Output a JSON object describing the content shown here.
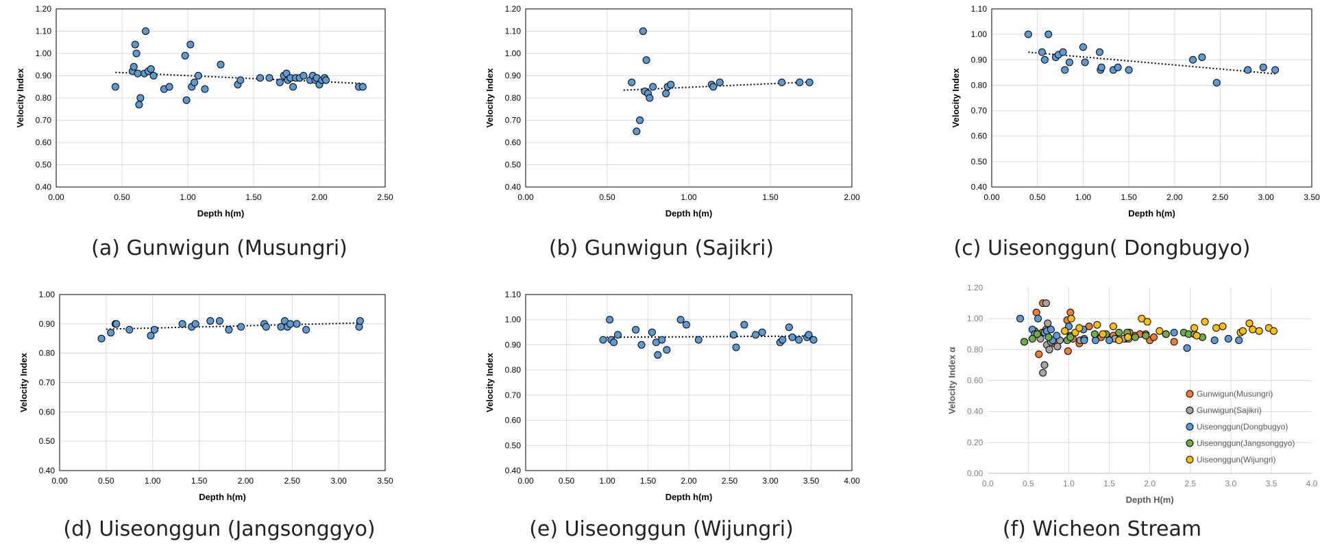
{
  "chart_data": [
    {
      "type": "scatter",
      "title": "",
      "caption": "(a) Gunwigun (Musungri)",
      "xlabel": "Depth h(m)",
      "ylabel": "Velocity Index",
      "xlim": [
        0,
        2.5
      ],
      "xstep": 0.5,
      "xdecimals": 2,
      "ylim": [
        0.4,
        1.2
      ],
      "ystep": 0.1,
      "ydecimals": 2,
      "grid": "horizontal",
      "marker_color": "#5B9BD5",
      "trendline": {
        "x": [
          0.45,
          2.33
        ],
        "y": [
          0.915,
          0.865
        ]
      },
      "series": [
        {
          "name": "Gunwigun(Musungri)",
          "x": [
            0.45,
            0.58,
            0.59,
            0.6,
            0.61,
            0.62,
            0.63,
            0.64,
            0.67,
            0.68,
            0.7,
            0.72,
            0.74,
            0.82,
            0.86,
            0.98,
            0.99,
            1.02,
            1.03,
            1.05,
            1.08,
            1.13,
            1.25,
            1.38,
            1.4,
            1.55,
            1.62,
            1.7,
            1.73,
            1.75,
            1.76,
            1.78,
            1.8,
            1.82,
            1.85,
            1.88,
            1.93,
            1.95,
            1.97,
            1.98,
            2.0,
            2.02,
            2.04,
            2.05,
            2.3,
            2.33
          ],
          "y": [
            0.85,
            0.92,
            0.94,
            1.04,
            1.0,
            0.91,
            0.77,
            0.8,
            0.91,
            1.1,
            0.92,
            0.93,
            0.9,
            0.84,
            0.85,
            0.99,
            0.79,
            1.04,
            0.85,
            0.87,
            0.9,
            0.84,
            0.95,
            0.86,
            0.88,
            0.89,
            0.89,
            0.87,
            0.9,
            0.91,
            0.88,
            0.89,
            0.85,
            0.89,
            0.89,
            0.9,
            0.88,
            0.9,
            0.88,
            0.89,
            0.86,
            0.88,
            0.89,
            0.88,
            0.85,
            0.85
          ]
        }
      ]
    },
    {
      "type": "scatter",
      "title": "",
      "caption": "(b) Gunwigun (Sajikri)",
      "xlabel": "Depth h(m)",
      "ylabel": "Velocity Index",
      "xlim": [
        0,
        2.0
      ],
      "xstep": 0.5,
      "xdecimals": 2,
      "ylim": [
        0.4,
        1.2
      ],
      "ystep": 0.1,
      "ydecimals": 2,
      "grid": "horizontal",
      "marker_color": "#5B9BD5",
      "trendline": {
        "x": [
          0.6,
          1.75
        ],
        "y": [
          0.835,
          0.872
        ]
      },
      "series": [
        {
          "name": "Gunwigun(Sajikri)",
          "x": [
            0.65,
            0.68,
            0.7,
            0.72,
            0.73,
            0.74,
            0.75,
            0.76,
            0.78,
            0.86,
            0.87,
            0.89,
            1.14,
            1.15,
            1.19,
            1.57,
            1.68,
            1.74
          ],
          "y": [
            0.87,
            0.65,
            0.7,
            1.1,
            0.83,
            0.97,
            0.82,
            0.8,
            0.85,
            0.82,
            0.85,
            0.86,
            0.86,
            0.85,
            0.87,
            0.87,
            0.87,
            0.87
          ]
        }
      ]
    },
    {
      "type": "scatter",
      "title": "",
      "caption": "(c) Uiseonggun( Dongbugyo)",
      "xlabel": "Depth h(m)",
      "ylabel": "Velocity Index",
      "xlim": [
        0,
        3.5
      ],
      "xstep": 0.5,
      "xdecimals": 2,
      "ylim": [
        0.4,
        1.1
      ],
      "ystep": 0.1,
      "ydecimals": 2,
      "grid": "horizontal",
      "marker_color": "#5B9BD5",
      "trendline": {
        "x": [
          0.4,
          3.1
        ],
        "y": [
          0.93,
          0.845
        ]
      },
      "series": [
        {
          "name": "Uiseonggun(Dongbugyo)",
          "x": [
            0.4,
            0.55,
            0.58,
            0.62,
            0.7,
            0.73,
            0.78,
            0.8,
            0.85,
            1.0,
            1.02,
            1.18,
            1.19,
            1.2,
            1.33,
            1.38,
            1.5,
            2.2,
            2.3,
            2.46,
            2.8,
            2.97,
            3.1
          ],
          "y": [
            1.0,
            0.93,
            0.9,
            1.0,
            0.91,
            0.92,
            0.93,
            0.86,
            0.89,
            0.95,
            0.89,
            0.93,
            0.86,
            0.87,
            0.86,
            0.87,
            0.86,
            0.9,
            0.91,
            0.81,
            0.86,
            0.87,
            0.86
          ]
        }
      ]
    },
    {
      "type": "scatter",
      "title": "",
      "caption": "(d) Uiseonggun (Jangsonggyo)",
      "xlabel": "Depth h(m)",
      "ylabel": "Velocity Index",
      "xlim": [
        0,
        3.5
      ],
      "xstep": 0.5,
      "xdecimals": 2,
      "ylim": [
        0.4,
        1.0
      ],
      "ystep": 0.1,
      "ydecimals": 2,
      "grid": "horizontal",
      "marker_color": "#5B9BD5",
      "trendline": {
        "x": [
          0.5,
          3.2
        ],
        "y": [
          0.882,
          0.903
        ]
      },
      "series": [
        {
          "name": "Uiseonggun(Jangsonggyo)",
          "x": [
            0.45,
            0.55,
            0.6,
            0.61,
            0.75,
            0.98,
            1.02,
            1.32,
            1.42,
            1.46,
            1.62,
            1.72,
            1.82,
            1.95,
            2.2,
            2.22,
            2.38,
            2.42,
            2.45,
            2.48,
            2.55,
            2.65,
            3.22,
            3.23
          ],
          "y": [
            0.85,
            0.87,
            0.9,
            0.9,
            0.88,
            0.86,
            0.88,
            0.9,
            0.89,
            0.9,
            0.91,
            0.91,
            0.88,
            0.89,
            0.9,
            0.89,
            0.89,
            0.91,
            0.89,
            0.9,
            0.9,
            0.88,
            0.89,
            0.91
          ]
        }
      ]
    },
    {
      "type": "scatter",
      "title": "",
      "caption": "(e) Uiseonggun (Wijungri)",
      "xlabel": "Depth h(m)",
      "ylabel": "Velocity Index",
      "xlim": [
        0,
        4.0
      ],
      "xstep": 0.5,
      "xdecimals": 2,
      "ylim": [
        0.4,
        1.1
      ],
      "ystep": 0.1,
      "ydecimals": 2,
      "grid": "horizontal",
      "marker_color": "#5B9BD5",
      "trendline": {
        "x": [
          0.95,
          3.52
        ],
        "y": [
          0.93,
          0.935
        ]
      },
      "series": [
        {
          "name": "Uiseonggun(Wijungri)",
          "x": [
            0.95,
            1.03,
            1.05,
            1.08,
            1.13,
            1.35,
            1.42,
            1.55,
            1.6,
            1.62,
            1.67,
            1.73,
            1.9,
            1.97,
            2.12,
            2.55,
            2.58,
            2.68,
            2.82,
            2.9,
            3.12,
            3.15,
            3.23,
            3.27,
            3.35,
            3.45,
            3.47,
            3.53
          ],
          "y": [
            0.92,
            1.0,
            0.92,
            0.91,
            0.94,
            0.96,
            0.9,
            0.95,
            0.91,
            0.86,
            0.92,
            0.88,
            1.0,
            0.98,
            0.92,
            0.94,
            0.89,
            0.98,
            0.94,
            0.95,
            0.91,
            0.92,
            0.97,
            0.93,
            0.92,
            0.93,
            0.94,
            0.92
          ]
        }
      ]
    },
    {
      "type": "scatter",
      "title": "",
      "caption": "(f) Wicheon Stream",
      "xlabel": "Depth H(m)",
      "ylabel": "Velocity Index α",
      "xlim": [
        0,
        4.0
      ],
      "xstep": 0.5,
      "xdecimals": 1,
      "ylim": [
        0,
        1.2
      ],
      "ystep": 0.2,
      "ydecimals": 2,
      "grid": "both",
      "legend_position": "bottom-right",
      "series": [
        {
          "name": "Gunwigun(Musungri)",
          "color": "#ED7D31",
          "x": [
            0.45,
            0.58,
            0.6,
            0.63,
            0.67,
            0.68,
            0.72,
            0.82,
            0.98,
            0.99,
            1.02,
            1.05,
            1.13,
            1.25,
            1.4,
            1.55,
            1.7,
            1.75,
            1.82,
            1.88,
            1.95,
            2.0,
            2.05,
            2.3
          ],
          "y": [
            0.85,
            0.92,
            1.04,
            0.77,
            0.91,
            1.1,
            0.93,
            0.84,
            0.99,
            0.79,
            1.04,
            0.87,
            0.84,
            0.95,
            0.88,
            0.89,
            0.87,
            0.91,
            0.89,
            0.9,
            0.9,
            0.86,
            0.88,
            0.85
          ]
        },
        {
          "name": "Gunwigun(Sajikri)",
          "color": "#A5A5A5",
          "x": [
            0.65,
            0.68,
            0.7,
            0.72,
            0.73,
            0.74,
            0.76,
            0.78,
            0.86,
            0.89,
            1.14,
            1.19,
            1.57,
            1.68,
            1.74
          ],
          "y": [
            0.87,
            0.65,
            0.7,
            1.1,
            0.83,
            0.97,
            0.8,
            0.85,
            0.82,
            0.86,
            0.86,
            0.87,
            0.87,
            0.87,
            0.87
          ]
        },
        {
          "name": "Uiseonggun(Dongbugyo)",
          "color": "#5B9BD5",
          "x": [
            0.4,
            0.55,
            0.58,
            0.62,
            0.7,
            0.73,
            0.78,
            0.8,
            0.85,
            1.0,
            1.02,
            1.18,
            1.19,
            1.33,
            1.5,
            2.2,
            2.3,
            2.46,
            2.8,
            2.97,
            3.1
          ],
          "y": [
            1.0,
            0.93,
            0.9,
            1.0,
            0.91,
            0.92,
            0.93,
            0.86,
            0.89,
            0.95,
            0.89,
            0.93,
            0.86,
            0.86,
            0.86,
            0.9,
            0.91,
            0.81,
            0.86,
            0.87,
            0.86
          ]
        },
        {
          "name": "Uiseonggun(Jangsonggyo)",
          "color": "#70AD47",
          "x": [
            0.45,
            0.55,
            0.61,
            0.75,
            0.98,
            1.02,
            1.32,
            1.46,
            1.62,
            1.72,
            1.82,
            1.95,
            2.2,
            2.42,
            2.48,
            2.55,
            2.65
          ],
          "y": [
            0.85,
            0.87,
            0.9,
            0.88,
            0.86,
            0.88,
            0.9,
            0.9,
            0.91,
            0.91,
            0.88,
            0.89,
            0.9,
            0.91,
            0.9,
            0.9,
            0.88
          ]
        },
        {
          "name": "Uiseonggun(Wijungri)",
          "color": "#FFC000",
          "x": [
            0.95,
            1.03,
            1.08,
            1.13,
            1.35,
            1.42,
            1.55,
            1.62,
            1.73,
            1.9,
            1.97,
            2.12,
            2.55,
            2.58,
            2.68,
            2.82,
            2.9,
            3.12,
            3.15,
            3.23,
            3.27,
            3.35,
            3.47,
            3.53
          ],
          "y": [
            0.92,
            1.0,
            0.91,
            0.94,
            0.96,
            0.9,
            0.95,
            0.86,
            0.88,
            1.0,
            0.98,
            0.92,
            0.94,
            0.89,
            0.98,
            0.94,
            0.95,
            0.91,
            0.92,
            0.97,
            0.93,
            0.92,
            0.94,
            0.92
          ]
        }
      ]
    }
  ]
}
